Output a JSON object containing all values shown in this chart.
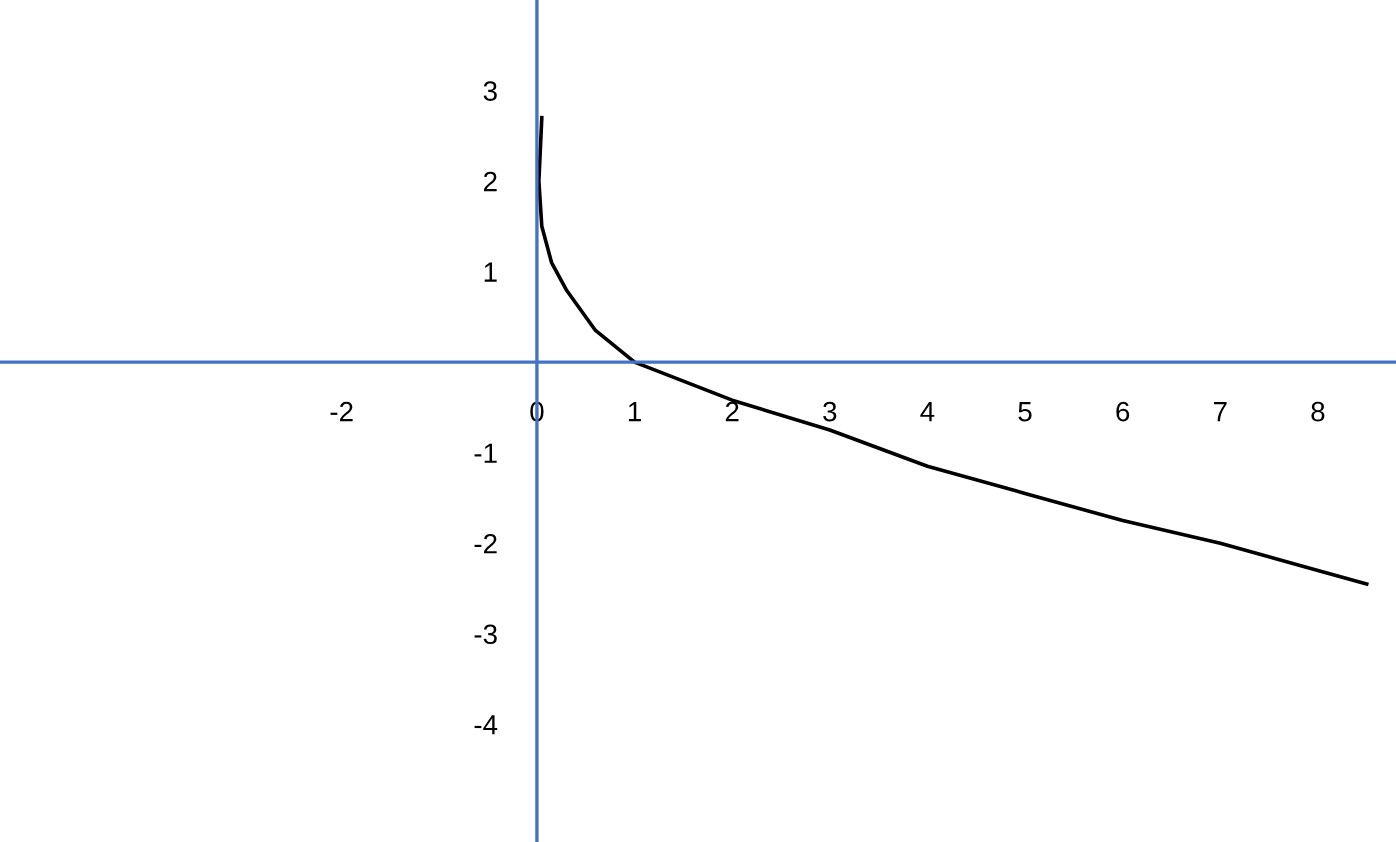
{
  "chart_data": {
    "type": "line",
    "x": [
      0.05,
      0.02,
      0.05,
      0.15,
      0.3,
      0.6,
      1,
      2,
      3,
      4,
      5,
      6,
      7,
      8,
      8.5
    ],
    "series": [
      {
        "color": "#000000",
        "values": [
          2.7,
          2.0,
          1.5,
          1.1,
          0.8,
          0.35,
          0,
          -0.42,
          -0.75,
          -1.15,
          -1.45,
          -1.75,
          -2.0,
          -2.3,
          -2.45
        ]
      }
    ],
    "xlim": [
      -5.5,
      8.8
    ],
    "ylim": [
      -5.3,
      4.0
    ],
    "xticks": [
      -2,
      0,
      1,
      2,
      3,
      4,
      5,
      6,
      7,
      8
    ],
    "yticks": [
      -4,
      -3,
      -2,
      -1,
      1,
      2,
      3
    ],
    "grid": false,
    "legend": false,
    "marker": "none",
    "line_style": "solid"
  }
}
